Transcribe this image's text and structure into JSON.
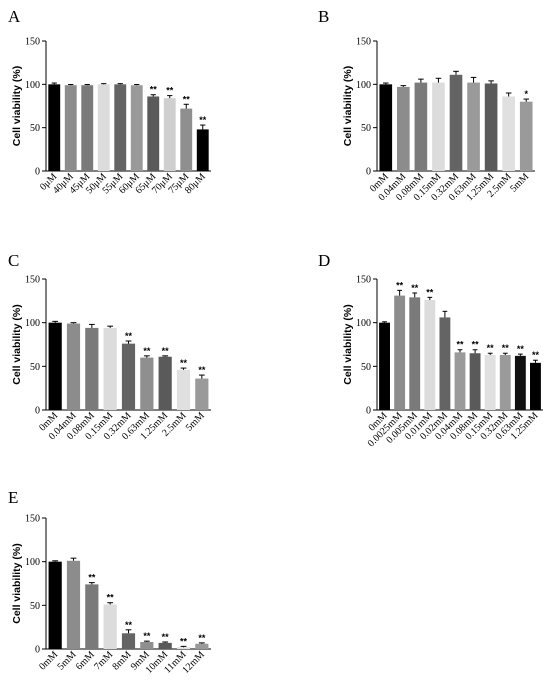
{
  "chart_data": [
    {
      "panel": "A",
      "type": "bar",
      "ylabel": "Cell viability (%)",
      "ylim": [
        0,
        150
      ],
      "yticks": [
        0,
        50,
        100,
        150
      ],
      "categories": [
        "0μM",
        "40μM",
        "45μM",
        "50μM",
        "55μM",
        "60μM",
        "65μM",
        "70μM",
        "75μM",
        "80μM"
      ],
      "values": [
        100,
        99,
        99,
        100,
        100,
        99,
        86,
        84,
        72,
        48
      ],
      "errors": [
        1.5,
        0.8,
        0.8,
        0.8,
        0.8,
        0.8,
        2,
        3,
        5,
        5
      ],
      "significance": [
        "",
        "",
        "",
        "",
        "",
        "",
        "**",
        "**",
        "**",
        "**"
      ],
      "colors": [
        "#000000",
        "#8c8c8c",
        "#7a7a7a",
        "#dcdcdc",
        "#646464",
        "#9a9a9a",
        "#5a5a5a",
        "#cfcfcf",
        "#8f8f8f",
        "#000000"
      ]
    },
    {
      "panel": "B",
      "type": "bar",
      "ylabel": "Cell viability (%)",
      "ylim": [
        0,
        150
      ],
      "yticks": [
        0,
        50,
        100,
        150
      ],
      "categories": [
        "0mM",
        "0.04mM",
        "0.08mM",
        "0.15mM",
        "0.32mM",
        "0.63mM",
        "1.25mM",
        "2.5mM",
        "5mM"
      ],
      "values": [
        100,
        97,
        102,
        102,
        111,
        102,
        101,
        86,
        80
      ],
      "errors": [
        1.5,
        1.5,
        4,
        5,
        4,
        6,
        3,
        4,
        3
      ],
      "significance": [
        "",
        "",
        "",
        "",
        "",
        "",
        "",
        "",
        "*"
      ],
      "colors": [
        "#000000",
        "#8c8c8c",
        "#7a7a7a",
        "#dcdcdc",
        "#646464",
        "#9a9a9a",
        "#5a5a5a",
        "#e0e0e0",
        "#9a9a9a"
      ]
    },
    {
      "panel": "C",
      "type": "bar",
      "ylabel": "Cell viability (%)",
      "ylim": [
        0,
        150
      ],
      "yticks": [
        0,
        50,
        100,
        150
      ],
      "categories": [
        "0mM",
        "0.04mM",
        "0.08mM",
        "0.15mM",
        "0.32mM",
        "0.63mM",
        "1.25mM",
        "2.5mM",
        "5mM"
      ],
      "values": [
        100,
        99,
        94,
        94,
        76,
        60,
        61,
        46,
        36
      ],
      "errors": [
        1.5,
        1,
        4,
        2,
        3,
        2,
        1,
        2,
        4
      ],
      "significance": [
        "",
        "",
        "",
        "",
        "**",
        "**",
        "**",
        "**",
        "**"
      ],
      "colors": [
        "#000000",
        "#8c8c8c",
        "#7a7a7a",
        "#dcdcdc",
        "#646464",
        "#8f8f8f",
        "#5a5a5a",
        "#e0e0e0",
        "#9a9a9a"
      ]
    },
    {
      "panel": "D",
      "type": "bar",
      "ylabel": "Cell viability (%)",
      "ylim": [
        0,
        150
      ],
      "yticks": [
        0,
        50,
        100,
        150
      ],
      "categories": [
        "0mM",
        "0.0025mM",
        "0.005mM",
        "0.01mM",
        "0.02mM",
        "0.04mM",
        "0.08mM",
        "0.15mM",
        "0.32mM",
        "0.63mM",
        "1.25mM"
      ],
      "values": [
        100,
        131,
        129,
        126,
        106,
        66,
        65,
        63,
        63,
        62,
        54
      ],
      "errors": [
        1,
        6,
        5,
        3,
        7,
        3,
        4,
        2,
        2,
        2,
        3
      ],
      "significance": [
        "",
        "**",
        "**",
        "**",
        "",
        "**",
        "**",
        "**",
        "**",
        "**",
        "**"
      ],
      "colors": [
        "#000000",
        "#8c8c8c",
        "#7a7a7a",
        "#dcdcdc",
        "#646464",
        "#9a9a9a",
        "#5a5a5a",
        "#e0e0e0",
        "#9a9a9a",
        "#111111",
        "#000000"
      ]
    },
    {
      "panel": "E",
      "type": "bar",
      "ylabel": "Cell viability (%)",
      "ylim": [
        0,
        150
      ],
      "yticks": [
        0,
        50,
        100,
        150
      ],
      "categories": [
        "0mM",
        "5mM",
        "6mM",
        "7mM",
        "8mM",
        "9mM",
        "10mM",
        "11mM",
        "12mM"
      ],
      "values": [
        100,
        101,
        74,
        51,
        18,
        8,
        7,
        2,
        6
      ],
      "errors": [
        1,
        3,
        2,
        2,
        4,
        1,
        1,
        1,
        1
      ],
      "significance": [
        "",
        "",
        "**",
        "**",
        "**",
        "**",
        "**",
        "**",
        "**"
      ],
      "colors": [
        "#000000",
        "#8c8c8c",
        "#7a7a7a",
        "#dcdcdc",
        "#646464",
        "#8f8f8f",
        "#5a5a5a",
        "#e0e0e0",
        "#9a9a9a"
      ]
    }
  ]
}
